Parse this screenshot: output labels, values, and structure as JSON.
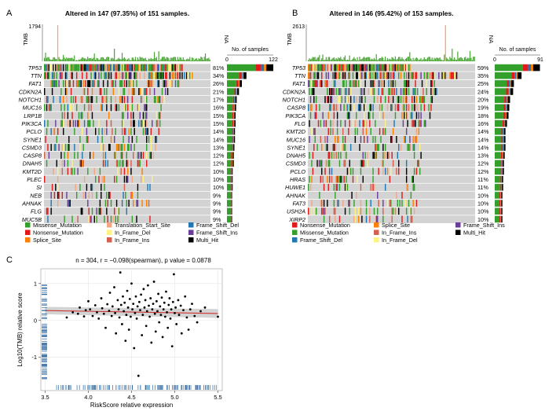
{
  "colors": {
    "Missense_Mutation": "#33a02c",
    "Nonsense_Mutation": "#e31a1c",
    "Splice_Site": "#ff7f00",
    "Translation_Start_Site": "#f4a582",
    "In_Frame_Del": "#fff380",
    "In_Frame_Ins": "#d6604d",
    "Frame_Shift_Del": "#1f78b4",
    "Frame_Shift_Ins": "#6a3d9a",
    "Multi_Hit": "#000000",
    "background": "#d3d3d3",
    "tmb_bar": "#4aa635",
    "rug": "#2b6aa8",
    "fit": "#cc3333",
    "ci": "#c8c8c8"
  },
  "chart_data": [
    {
      "type": "oncoplot",
      "panel": "A",
      "title": "Altered in 147 (97.35%) of 151 samples.",
      "tmb_label": "TMB",
      "tmb_max": "1794",
      "na_label": "NA",
      "samples_axis_label": "No. of samples",
      "samples_axis_min": "0",
      "samples_axis_max": "122",
      "genes": [
        "TP53",
        "TTN",
        "FAT1",
        "CDKN2A",
        "NOTCH1",
        "MUC16",
        "LRP1B",
        "PIK3CA",
        "PCLO",
        "SYNE1",
        "CSMD3",
        "CASP8",
        "DNAH5",
        "KMT2D",
        "PLEC",
        "SI",
        "NEB",
        "AHNAK",
        "FLG",
        "MUC5B"
      ],
      "percentages": [
        "81%",
        "34%",
        "26%",
        "21%",
        "17%",
        "16%",
        "15%",
        "15%",
        "14%",
        "14%",
        "13%",
        "12%",
        "12%",
        "10%",
        "10%",
        "10%",
        "9%",
        "9%",
        "9%",
        "9%"
      ],
      "legend": [
        {
          "key": "Missense_Mutation",
          "label": "Missense_Mutation"
        },
        {
          "key": "Translation_Start_Site",
          "label": "Translation_Start_Site"
        },
        {
          "key": "Frame_Shift_Del",
          "label": "Frame_Shift_Del"
        },
        {
          "key": "Nonsense_Mutation",
          "label": "Nonsense_Mutation"
        },
        {
          "key": "In_Frame_Del",
          "label": "In_Frame_Del"
        },
        {
          "key": "Frame_Shift_Ins",
          "label": "Frame_Shift_Ins"
        },
        {
          "key": "Splice_Site",
          "label": "Splice_Site"
        },
        {
          "key": "In_Frame_Ins",
          "label": "In_Frame_Ins"
        },
        {
          "key": "Multi_Hit",
          "label": "Multi_Hit"
        }
      ]
    },
    {
      "type": "oncoplot",
      "panel": "B",
      "title": "Altered in 146 (95.42%) of 153 samples.",
      "tmb_label": "TMB",
      "tmb_max": "2613",
      "na_label": "NA",
      "samples_axis_label": "No. of samples",
      "samples_axis_min": "0",
      "samples_axis_max": "91",
      "genes": [
        "TP53",
        "TTN",
        "FAT1",
        "CDKN2A",
        "NOTCH1",
        "CASP8",
        "PIK3CA",
        "FLG",
        "KMT2D",
        "MUC16",
        "SYNE1",
        "DNAH5",
        "CSMD3",
        "PCLO",
        "HRAS",
        "HUWE1",
        "AHNAK",
        "FAT3",
        "USH2A",
        "XIRP2"
      ],
      "percentages": [
        "59%",
        "35%",
        "25%",
        "24%",
        "20%",
        "19%",
        "18%",
        "16%",
        "14%",
        "14%",
        "14%",
        "13%",
        "12%",
        "12%",
        "11%",
        "11%",
        "10%",
        "10%",
        "10%",
        "10%"
      ],
      "legend": [
        {
          "key": "Nonsense_Mutation",
          "label": "Nonsense_Mutation"
        },
        {
          "key": "Splice_Site",
          "label": "Splice_Site"
        },
        {
          "key": "Frame_Shift_Ins",
          "label": "Frame_Shift_Ins"
        },
        {
          "key": "Missense_Mutation",
          "label": "Missense_Mutation"
        },
        {
          "key": "In_Frame_Ins",
          "label": "In_Frame_Ins"
        },
        {
          "key": "Multi_Hit",
          "label": "Multi_Hit"
        },
        {
          "key": "Frame_Shift_Del",
          "label": "Frame_Shift_Del"
        },
        {
          "key": "In_Frame_Del",
          "label": "In_Frame_Del"
        }
      ]
    },
    {
      "type": "scatter",
      "panel": "C",
      "title": "n = 304, r = −0.098(spearman), p value = 0.0878",
      "xlabel": "RiskScore relative expression",
      "ylabel": "Log10(TMB) relative score",
      "xlim": [
        3.45,
        5.55
      ],
      "ylim": [
        -1.9,
        1.4
      ],
      "xticks": [
        "3.5",
        "4.0",
        "4.5",
        "5.0",
        "5.5"
      ],
      "yticks": [
        "-1",
        "0",
        "1"
      ],
      "fit": {
        "intercept_at_xmin": 0.27,
        "slope": -0.04
      },
      "points": [
        [
          3.75,
          0.08
        ],
        [
          3.82,
          0.22
        ],
        [
          3.88,
          0.18
        ],
        [
          3.9,
          0.35
        ],
        [
          3.95,
          0.11
        ],
        [
          3.97,
          0.28
        ],
        [
          4.0,
          0.52
        ],
        [
          4.02,
          0.3
        ],
        [
          4.05,
          0.12
        ],
        [
          4.08,
          0.41
        ],
        [
          4.1,
          0.22
        ],
        [
          4.12,
          0.05
        ],
        [
          4.15,
          0.6
        ],
        [
          4.16,
          0.33
        ],
        [
          4.18,
          0.18
        ],
        [
          4.2,
          -0.2
        ],
        [
          4.22,
          0.44
        ],
        [
          4.24,
          0.26
        ],
        [
          4.25,
          0.75
        ],
        [
          4.27,
          0.12
        ],
        [
          4.28,
          0.38
        ],
        [
          4.3,
          0.9
        ],
        [
          4.31,
          0.2
        ],
        [
          4.32,
          -0.35
        ],
        [
          4.34,
          0.55
        ],
        [
          4.35,
          0.3
        ],
        [
          4.36,
          0.08
        ],
        [
          4.37,
          1.3
        ],
        [
          4.38,
          0.42
        ],
        [
          4.39,
          -0.1
        ],
        [
          4.4,
          0.65
        ],
        [
          4.41,
          0.25
        ],
        [
          4.42,
          0.48
        ],
        [
          4.43,
          -0.55
        ],
        [
          4.44,
          0.15
        ],
        [
          4.45,
          0.8
        ],
        [
          4.46,
          0.35
        ],
        [
          4.47,
          -0.25
        ],
        [
          4.48,
          0.58
        ],
        [
          4.49,
          0.1
        ],
        [
          4.5,
          1.0
        ],
        [
          4.51,
          0.3
        ],
        [
          4.52,
          0.45
        ],
        [
          4.53,
          -0.75
        ],
        [
          4.54,
          0.2
        ],
        [
          4.55,
          0.65
        ],
        [
          4.56,
          0.05
        ],
        [
          4.57,
          0.38
        ],
        [
          4.58,
          -1.5
        ],
        [
          4.59,
          0.5
        ],
        [
          4.6,
          0.28
        ],
        [
          4.61,
          0.7
        ],
        [
          4.62,
          -0.4
        ],
        [
          4.63,
          0.15
        ],
        [
          4.64,
          0.85
        ],
        [
          4.65,
          0.35
        ],
        [
          4.66,
          0.55
        ],
        [
          4.67,
          -0.15
        ],
        [
          4.68,
          0.25
        ],
        [
          4.69,
          0.95
        ],
        [
          4.7,
          0.4
        ],
        [
          4.71,
          0.1
        ],
        [
          4.72,
          0.6
        ],
        [
          4.73,
          -0.6
        ],
        [
          4.74,
          0.3
        ],
        [
          4.75,
          0.45
        ],
        [
          4.76,
          1.05
        ],
        [
          4.77,
          0.18
        ],
        [
          4.78,
          -0.3
        ],
        [
          4.79,
          0.52
        ],
        [
          4.8,
          0.25
        ],
        [
          4.81,
          0.72
        ],
        [
          4.82,
          -0.05
        ],
        [
          4.83,
          0.38
        ],
        [
          4.84,
          0.15
        ],
        [
          4.85,
          0.62
        ],
        [
          4.86,
          -0.45
        ],
        [
          4.87,
          0.3
        ],
        [
          4.88,
          0.48
        ],
        [
          4.89,
          0.1
        ],
        [
          4.9,
          0.78
        ],
        [
          4.91,
          0.22
        ],
        [
          4.92,
          -0.2
        ],
        [
          4.93,
          0.42
        ],
        [
          4.94,
          0.6
        ],
        [
          4.95,
          0.05
        ],
        [
          4.96,
          0.3
        ],
        [
          4.97,
          -0.7
        ],
        [
          4.98,
          0.5
        ],
        [
          4.99,
          1.25
        ],
        [
          5.0,
          0.2
        ],
        [
          5.01,
          0.35
        ],
        [
          5.02,
          -0.1
        ],
        [
          5.04,
          0.55
        ],
        [
          5.05,
          0.15
        ],
        [
          5.07,
          0.4
        ],
        [
          5.08,
          -0.35
        ],
        [
          5.1,
          0.28
        ],
        [
          5.12,
          0.65
        ],
        [
          5.14,
          0.08
        ],
        [
          5.16,
          -0.25
        ],
        [
          5.18,
          0.3
        ],
        [
          5.2,
          0.45
        ],
        [
          5.23,
          0.12
        ],
        [
          5.26,
          -0.05
        ],
        [
          5.3,
          0.25
        ],
        [
          5.35,
          0.35
        ],
        [
          5.5,
          0.1
        ]
      ]
    }
  ]
}
